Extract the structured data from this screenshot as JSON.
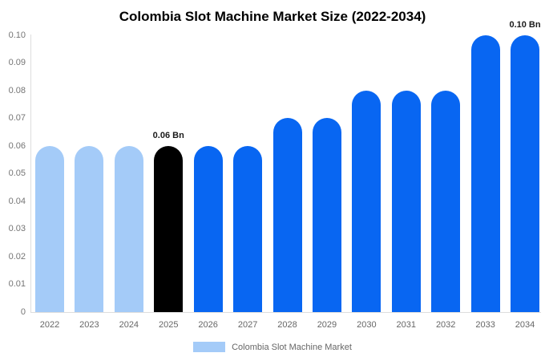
{
  "title": "Colombia Slot Machine Market Size (2022-2034)",
  "chart_data": {
    "type": "bar",
    "title": "Colombia Slot Machine Market Size (2022-2034)",
    "categories": [
      "2022",
      "2023",
      "2024",
      "2025",
      "2026",
      "2027",
      "2028",
      "2029",
      "2030",
      "2031",
      "2032",
      "2033",
      "2034"
    ],
    "values": [
      0.06,
      0.06,
      0.06,
      0.06,
      0.06,
      0.06,
      0.07,
      0.07,
      0.08,
      0.08,
      0.08,
      0.1,
      0.1
    ],
    "bar_colors": [
      "#A4CBF8",
      "#A4CBF8",
      "#A4CBF8",
      "#000000",
      "#0866F2",
      "#0866F2",
      "#0866F2",
      "#0866F2",
      "#0866F2",
      "#0866F2",
      "#0866F2",
      "#0866F2",
      "#0866F2"
    ],
    "xlabel": "",
    "ylabel": "",
    "ylim": [
      0,
      0.1
    ],
    "ytick_values": [
      0,
      0.01,
      0.02,
      0.03,
      0.04,
      0.05,
      0.06,
      0.07,
      0.08,
      0.09,
      0.1
    ],
    "ytick_labels": [
      "0",
      "0.01",
      "0.02",
      "0.03",
      "0.04",
      "0.05",
      "0.06",
      "0.07",
      "0.08",
      "0.09",
      "0.10"
    ],
    "grid": false,
    "legend_position": "bottom",
    "annotations": [
      {
        "bar_index": 3,
        "text": "0.06 Bn"
      },
      {
        "bar_index": 12,
        "text": "0.10 Bn"
      }
    ]
  },
  "legend": {
    "label": "Colombia Slot Machine Market",
    "swatch_color": "#A4CBF8"
  },
  "colors": {
    "bar_light_blue": "#A4CBF8",
    "bar_blue": "#0866F2",
    "bar_black": "#000000",
    "axis_line": "#DDDDDD",
    "tick_text": "#757575",
    "annotation_text": "#1A1A1A",
    "title_text": "#000000"
  }
}
